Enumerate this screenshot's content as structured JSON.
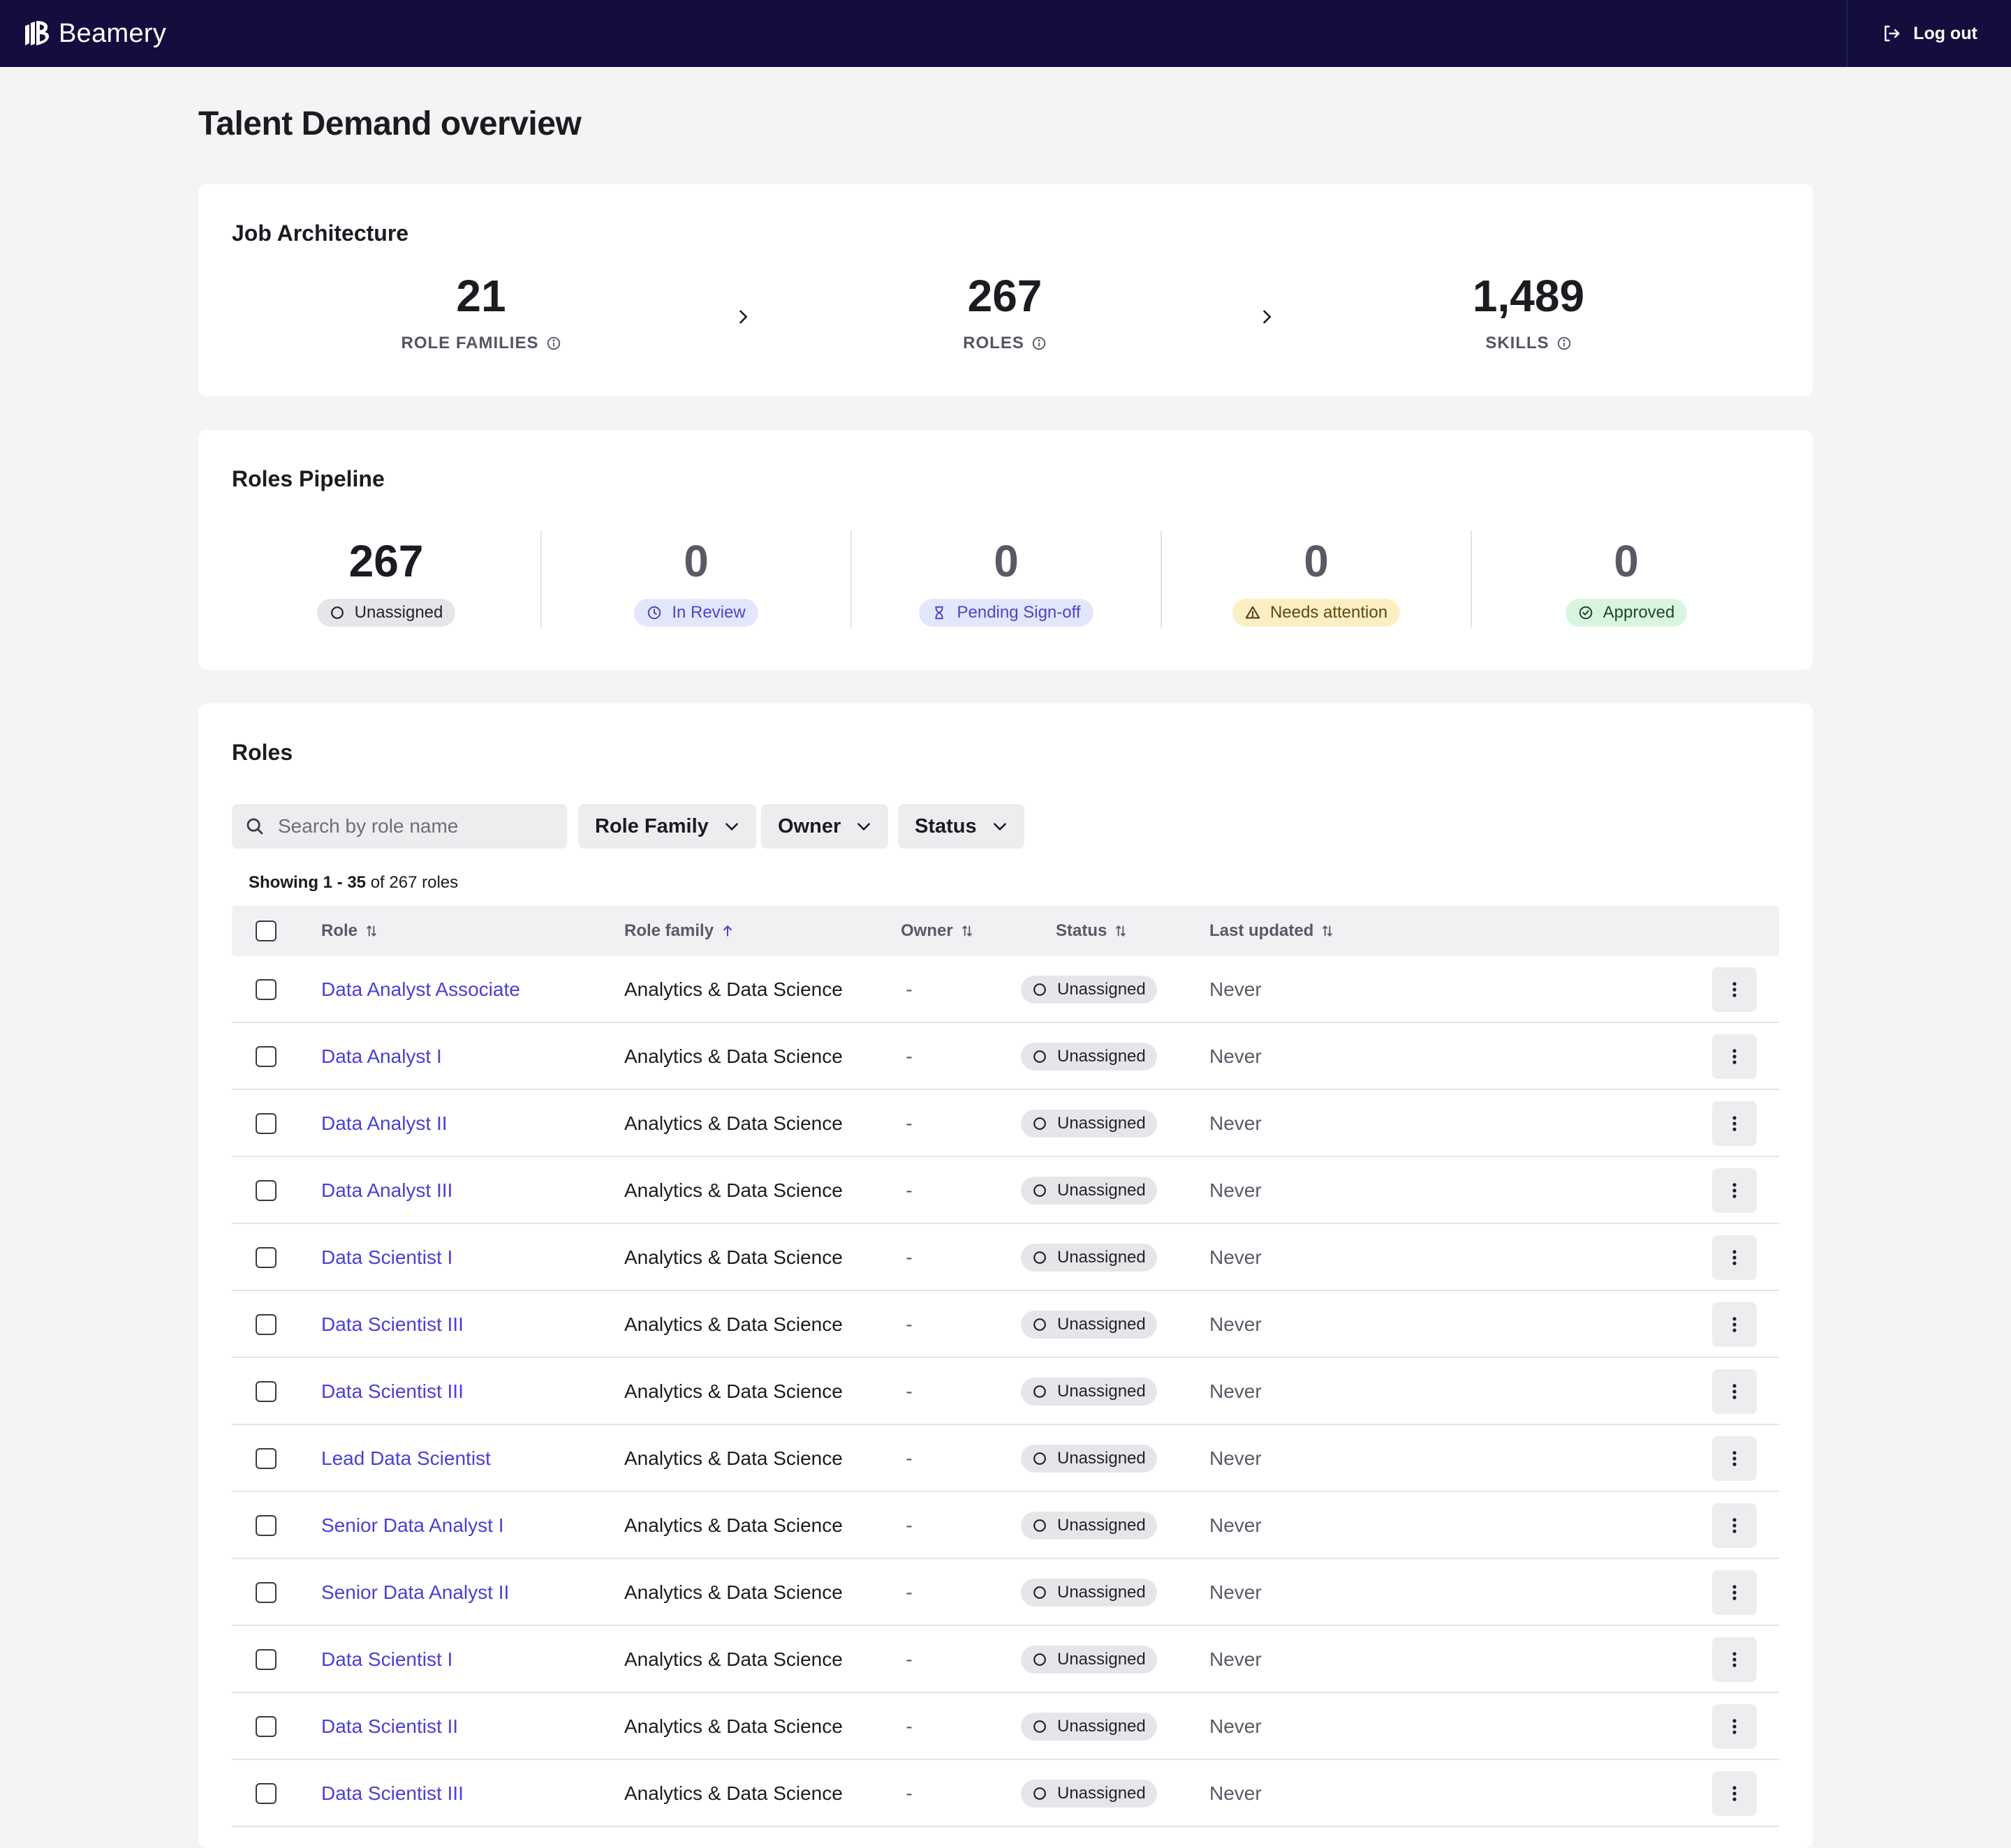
{
  "app": {
    "brand": "Beamery",
    "logout_label": "Log out"
  },
  "page": {
    "title": "Talent Demand overview"
  },
  "job_architecture": {
    "title": "Job Architecture",
    "stats": [
      {
        "value": "21",
        "label": "ROLE FAMILIES"
      },
      {
        "value": "267",
        "label": "ROLES"
      },
      {
        "value": "1,489",
        "label": "SKILLS"
      }
    ]
  },
  "roles_pipeline": {
    "title": "Roles Pipeline",
    "stages": [
      {
        "value": "267",
        "label": "Unassigned",
        "icon": "circle-icon"
      },
      {
        "value": "0",
        "label": "In Review",
        "icon": "clock-icon"
      },
      {
        "value": "0",
        "label": "Pending Sign-off",
        "icon": "hourglass-icon"
      },
      {
        "value": "0",
        "label": "Needs attention",
        "icon": "warning-icon"
      },
      {
        "value": "0",
        "label": "Approved",
        "icon": "check-circle-icon"
      }
    ]
  },
  "roles": {
    "title": "Roles",
    "search_placeholder": "Search by role name",
    "filters": [
      "Role Family",
      "Owner",
      "Status"
    ],
    "showing": {
      "prefix": "Showing",
      "range": "1 - 35",
      "suffix": "of 267 roles"
    },
    "columns": [
      "Role",
      "Role family",
      "Owner",
      "Status",
      "Last updated"
    ],
    "rows": [
      {
        "role": "Data Analyst Associate",
        "family": "Analytics & Data Science",
        "owner": "-",
        "status": "Unassigned",
        "updated": "Never"
      },
      {
        "role": "Data Analyst I",
        "family": "Analytics & Data Science",
        "owner": "-",
        "status": "Unassigned",
        "updated": "Never"
      },
      {
        "role": "Data Analyst II",
        "family": "Analytics & Data Science",
        "owner": "-",
        "status": "Unassigned",
        "updated": "Never"
      },
      {
        "role": "Data Analyst III",
        "family": "Analytics & Data Science",
        "owner": "-",
        "status": "Unassigned",
        "updated": "Never"
      },
      {
        "role": "Data Scientist I",
        "family": "Analytics & Data Science",
        "owner": "-",
        "status": "Unassigned",
        "updated": "Never"
      },
      {
        "role": "Data Scientist III",
        "family": "Analytics & Data Science",
        "owner": "-",
        "status": "Unassigned",
        "updated": "Never"
      },
      {
        "role": "Data Scientist III",
        "family": "Analytics & Data Science",
        "owner": "-",
        "status": "Unassigned",
        "updated": "Never"
      },
      {
        "role": "Lead Data Scientist",
        "family": "Analytics & Data Science",
        "owner": "-",
        "status": "Unassigned",
        "updated": "Never"
      },
      {
        "role": "Senior Data Analyst I",
        "family": "Analytics & Data Science",
        "owner": "-",
        "status": "Unassigned",
        "updated": "Never"
      },
      {
        "role": "Senior Data Analyst II",
        "family": "Analytics & Data Science",
        "owner": "-",
        "status": "Unassigned",
        "updated": "Never"
      },
      {
        "role": "Data Scientist I",
        "family": "Analytics & Data Science",
        "owner": "-",
        "status": "Unassigned",
        "updated": "Never"
      },
      {
        "role": "Data Scientist II",
        "family": "Analytics & Data Science",
        "owner": "-",
        "status": "Unassigned",
        "updated": "Never"
      },
      {
        "role": "Data Scientist III",
        "family": "Analytics & Data Science",
        "owner": "-",
        "status": "Unassigned",
        "updated": "Never"
      }
    ]
  },
  "colors": {
    "topbar": "#130e3d",
    "link": "#4a3fd6",
    "background": "#f4f4f5"
  }
}
